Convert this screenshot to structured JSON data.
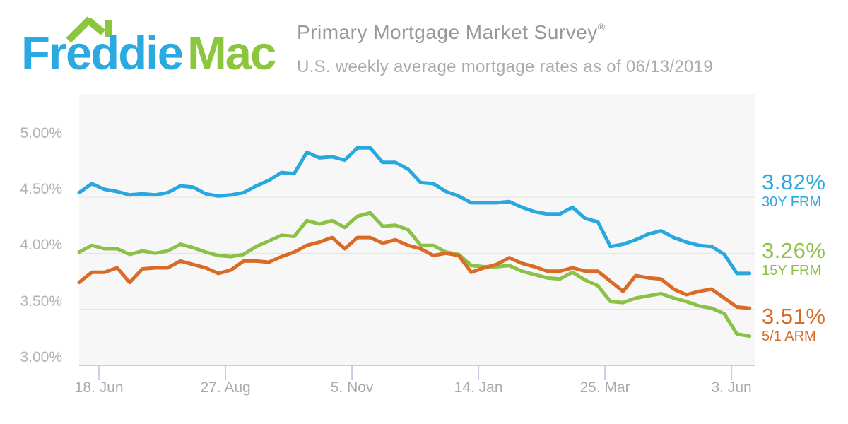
{
  "header": {
    "logo": {
      "word1": "Freddie",
      "word2": "Mac",
      "blue": "#2BAAE1",
      "green": "#8CC63F"
    },
    "title": "Primary Mortgage Market Survey",
    "registered_mark": "®",
    "subtitle": "U.S. weekly average mortgage rates as of 06/13/2019"
  },
  "colors": {
    "plot_bg": "#F7F7F7",
    "grid": "#E4E4E4",
    "axis": "#C5CEE2",
    "title_text": "#96989B",
    "subtitle_text": "#A9ABAE",
    "axis_label_text": "#ADAFB2",
    "series_blue": "#29A7DF",
    "series_green": "#8BC146",
    "series_orange": "#D96B27"
  },
  "chart_data": {
    "type": "line",
    "title": "Primary Mortgage Market Survey",
    "subtitle": "U.S. weekly average mortgage rates as of 06/13/2019",
    "frequency": "weekly",
    "grid": true,
    "legend_position": "right-edge-value-labels",
    "ylim": [
      3.0,
      5.42
    ],
    "y_ticks": [
      {
        "label": "5.00%",
        "value": 5.0
      },
      {
        "label": "4.50%",
        "value": 4.5
      },
      {
        "label": "4.00%",
        "value": 4.0
      },
      {
        "label": "3.50%",
        "value": 3.5
      },
      {
        "label": "3.00%",
        "value": 3.0
      }
    ],
    "x_ticks": [
      {
        "label": "18. Jun",
        "week": 1.57
      },
      {
        "label": "27. Aug",
        "week": 11.57
      },
      {
        "label": "5. Nov",
        "week": 21.57
      },
      {
        "label": "14. Jan",
        "week": 31.57
      },
      {
        "label": "25. Mar",
        "week": 41.57
      },
      {
        "label": "3. Jun",
        "week": 51.57
      }
    ],
    "x_range": [
      "2018-06-07",
      "2019-06-13"
    ],
    "series": [
      {
        "name": "30Y FRM",
        "current": "3.82%",
        "color": "#29A7DF",
        "values": [
          4.54,
          4.62,
          4.57,
          4.55,
          4.52,
          4.53,
          4.52,
          4.54,
          4.6,
          4.59,
          4.53,
          4.51,
          4.52,
          4.54,
          4.6,
          4.65,
          4.72,
          4.71,
          4.9,
          4.85,
          4.86,
          4.83,
          4.94,
          4.94,
          4.81,
          4.81,
          4.75,
          4.63,
          4.62,
          4.55,
          4.51,
          4.45,
          4.45,
          4.45,
          4.46,
          4.41,
          4.37,
          4.35,
          4.35,
          4.41,
          4.31,
          4.28,
          4.06,
          4.08,
          4.12,
          4.17,
          4.2,
          4.14,
          4.1,
          4.07,
          4.06,
          3.99,
          3.82,
          3.82
        ]
      },
      {
        "name": "15Y FRM",
        "current": "3.26%",
        "color": "#8BC146",
        "values": [
          4.01,
          4.07,
          4.04,
          4.04,
          3.99,
          4.02,
          4.0,
          4.02,
          4.08,
          4.05,
          4.01,
          3.98,
          3.97,
          3.99,
          4.06,
          4.11,
          4.16,
          4.15,
          4.29,
          4.26,
          4.29,
          4.23,
          4.33,
          4.36,
          4.24,
          4.25,
          4.21,
          4.07,
          4.07,
          4.01,
          3.99,
          3.89,
          3.88,
          3.88,
          3.89,
          3.84,
          3.81,
          3.78,
          3.77,
          3.83,
          3.76,
          3.71,
          3.57,
          3.56,
          3.6,
          3.62,
          3.64,
          3.6,
          3.57,
          3.53,
          3.51,
          3.46,
          3.28,
          3.26
        ]
      },
      {
        "name": "5/1 ARM",
        "current": "3.51%",
        "color": "#D96B27",
        "values": [
          3.74,
          3.83,
          3.83,
          3.87,
          3.74,
          3.86,
          3.87,
          3.87,
          3.93,
          3.9,
          3.87,
          3.82,
          3.85,
          3.93,
          3.93,
          3.92,
          3.97,
          4.01,
          4.07,
          4.1,
          4.14,
          4.04,
          4.14,
          4.14,
          4.09,
          4.12,
          4.07,
          4.04,
          3.98,
          4.0,
          3.98,
          3.83,
          3.87,
          3.9,
          3.96,
          3.91,
          3.88,
          3.84,
          3.84,
          3.87,
          3.84,
          3.84,
          3.75,
          3.66,
          3.8,
          3.78,
          3.77,
          3.68,
          3.63,
          3.66,
          3.68,
          3.6,
          3.52,
          3.51
        ]
      }
    ]
  }
}
